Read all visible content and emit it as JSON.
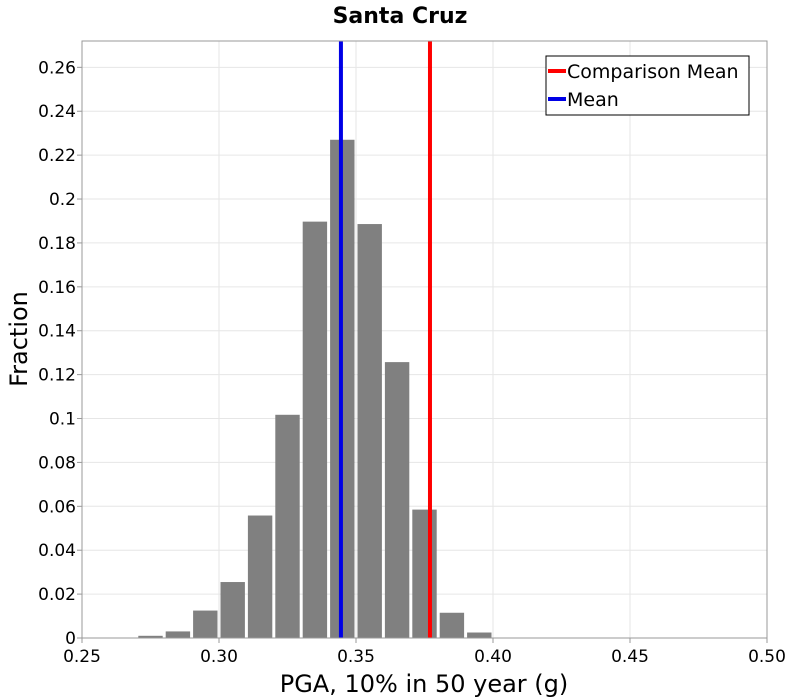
{
  "chart_data": {
    "type": "bar",
    "title": "Santa Cruz",
    "xlabel": "PGA, 10% in 50 year (g)",
    "ylabel": "Fraction",
    "xlim": [
      0.25,
      0.5
    ],
    "ylim": [
      0,
      0.272
    ],
    "grid": true,
    "xticks": [
      0.25,
      0.3,
      0.35,
      0.4,
      0.45,
      0.5
    ],
    "xtick_labels": [
      "0.25",
      "0.30",
      "0.35",
      "0.40",
      "0.45",
      "0.50"
    ],
    "yticks": [
      0,
      0.02,
      0.04,
      0.06,
      0.08,
      0.1,
      0.12,
      0.14,
      0.16,
      0.18,
      0.2,
      0.22,
      0.24,
      0.26
    ],
    "ytick_labels": [
      "0",
      "0.02",
      "0.04",
      "0.06",
      "0.08",
      "0.1",
      "0.12",
      "0.14",
      "0.16",
      "0.18",
      "0.2",
      "0.22",
      "0.24",
      "0.26"
    ],
    "bin_width": 0.01,
    "bar_color": "#808080",
    "bins": [
      {
        "center": 0.275,
        "value": 0.001
      },
      {
        "center": 0.285,
        "value": 0.003
      },
      {
        "center": 0.295,
        "value": 0.0125
      },
      {
        "center": 0.305,
        "value": 0.0255
      },
      {
        "center": 0.315,
        "value": 0.0558
      },
      {
        "center": 0.325,
        "value": 0.1017
      },
      {
        "center": 0.335,
        "value": 0.1897
      },
      {
        "center": 0.345,
        "value": 0.227
      },
      {
        "center": 0.355,
        "value": 0.1886
      },
      {
        "center": 0.365,
        "value": 0.1257
      },
      {
        "center": 0.375,
        "value": 0.0585
      },
      {
        "center": 0.385,
        "value": 0.0115
      },
      {
        "center": 0.395,
        "value": 0.0025
      }
    ],
    "vlines": [
      {
        "name": "Comparison Mean",
        "x": 0.377,
        "color": "#ff0000"
      },
      {
        "name": "Mean",
        "x": 0.3445,
        "color": "#0000e6"
      }
    ],
    "legend": {
      "position": "top-right",
      "entries": [
        {
          "label": "Comparison Mean",
          "color": "#ff0000"
        },
        {
          "label": "Mean",
          "color": "#0000e6"
        }
      ]
    }
  }
}
